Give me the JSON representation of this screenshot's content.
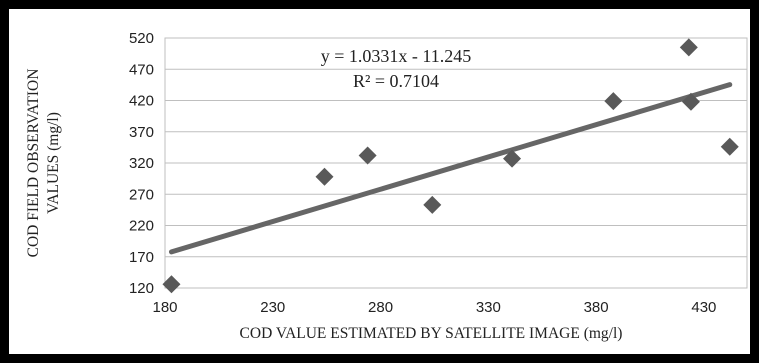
{
  "chart_data": {
    "type": "scatter",
    "title": "",
    "xlabel": "COD VALUE ESTIMATED BY SATELLITE IMAGE (mg/l)",
    "ylabel": "COD FIELD OBSERVATION VALUES (mg/l)",
    "ylabel_lines": [
      "COD FIELD OBSERVATION",
      "VALUES (mg/l)"
    ],
    "xlim": [
      180,
      450
    ],
    "ylim": [
      120,
      520
    ],
    "x_ticks": [
      180,
      230,
      280,
      330,
      380,
      430
    ],
    "y_ticks": [
      120,
      170,
      220,
      270,
      320,
      370,
      420,
      470,
      520
    ],
    "grid": "horizontal",
    "legend": "none",
    "marker": "diamond",
    "colors": {
      "points": "#595959",
      "trendline": "#666666",
      "grid": "#bfbfbf"
    },
    "series": [
      {
        "x": [
          183,
          254,
          274,
          304,
          341,
          388,
          423,
          424,
          442
        ],
        "y": [
          126,
          298,
          332,
          253,
          327,
          419,
          505,
          418,
          346
        ]
      }
    ],
    "trendline": {
      "slope": 1.0331,
      "intercept": -11.245,
      "x_range": [
        183,
        442
      ],
      "equation": "y = 1.0331x - 11.245",
      "r_squared": "R² = 0.7104"
    }
  }
}
